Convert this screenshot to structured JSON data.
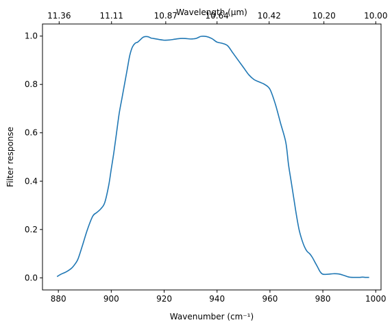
{
  "chart_data": {
    "type": "line",
    "title": "",
    "xlabel": "Wavenumber (cm⁻¹)",
    "ylabel": "Filter response",
    "top_xlabel": "Wavelength (μm)",
    "xlim": [
      874,
      1002
    ],
    "ylim": [
      -0.05,
      1.05
    ],
    "x_ticks": [
      880,
      900,
      920,
      940,
      960,
      980,
      1000
    ],
    "x_tick_labels": [
      "880",
      "900",
      "920",
      "940",
      "960",
      "980",
      "1000"
    ],
    "y_ticks": [
      0.0,
      0.2,
      0.4,
      0.6,
      0.8,
      1.0
    ],
    "y_tick_labels": [
      "0.0",
      "0.2",
      "0.4",
      "0.6",
      "0.8",
      "1.0"
    ],
    "top_x_ticks": [
      880.3,
      900.1,
      920.6,
      940.0,
      959.7,
      980.4,
      1000.0
    ],
    "top_x_tick_labels": [
      "11.36",
      "11.11",
      "10.87",
      "10.64",
      "10.42",
      "10.20",
      "10.00"
    ],
    "grid": false,
    "line_color": "#1f77b4",
    "series": [
      {
        "x": [
          879.5,
          881,
          883,
          885,
          886.5,
          887.5,
          889,
          891,
          893,
          894.5,
          896,
          897.5,
          899,
          900,
          901,
          902,
          903,
          904,
          905,
          906,
          907,
          908,
          909,
          910,
          911,
          912,
          913,
          914,
          915,
          916,
          918,
          920,
          922,
          924,
          926,
          928,
          930,
          932,
          934,
          936,
          938,
          940,
          942,
          944,
          946,
          948,
          950,
          952,
          954,
          956,
          958,
          960,
          962,
          964,
          966,
          967,
          968,
          969,
          970,
          971,
          972,
          973,
          974,
          975,
          976,
          977,
          978,
          979,
          980,
          982,
          984,
          986,
          988,
          990,
          992,
          994,
          995,
          996,
          997.5
        ],
        "y": [
          0.005,
          0.015,
          0.025,
          0.04,
          0.06,
          0.08,
          0.13,
          0.2,
          0.255,
          0.27,
          0.285,
          0.31,
          0.38,
          0.45,
          0.52,
          0.6,
          0.68,
          0.74,
          0.8,
          0.86,
          0.92,
          0.955,
          0.97,
          0.975,
          0.985,
          0.995,
          0.998,
          0.997,
          0.992,
          0.99,
          0.986,
          0.983,
          0.984,
          0.987,
          0.99,
          0.99,
          0.988,
          0.99,
          0.999,
          0.998,
          0.99,
          0.975,
          0.97,
          0.96,
          0.93,
          0.9,
          0.87,
          0.84,
          0.82,
          0.81,
          0.8,
          0.78,
          0.72,
          0.64,
          0.56,
          0.47,
          0.4,
          0.33,
          0.26,
          0.2,
          0.16,
          0.13,
          0.11,
          0.1,
          0.085,
          0.065,
          0.045,
          0.025,
          0.015,
          0.015,
          0.017,
          0.016,
          0.01,
          0.003,
          0.002,
          0.002,
          0.003,
          0.002,
          0.002
        ]
      }
    ]
  }
}
